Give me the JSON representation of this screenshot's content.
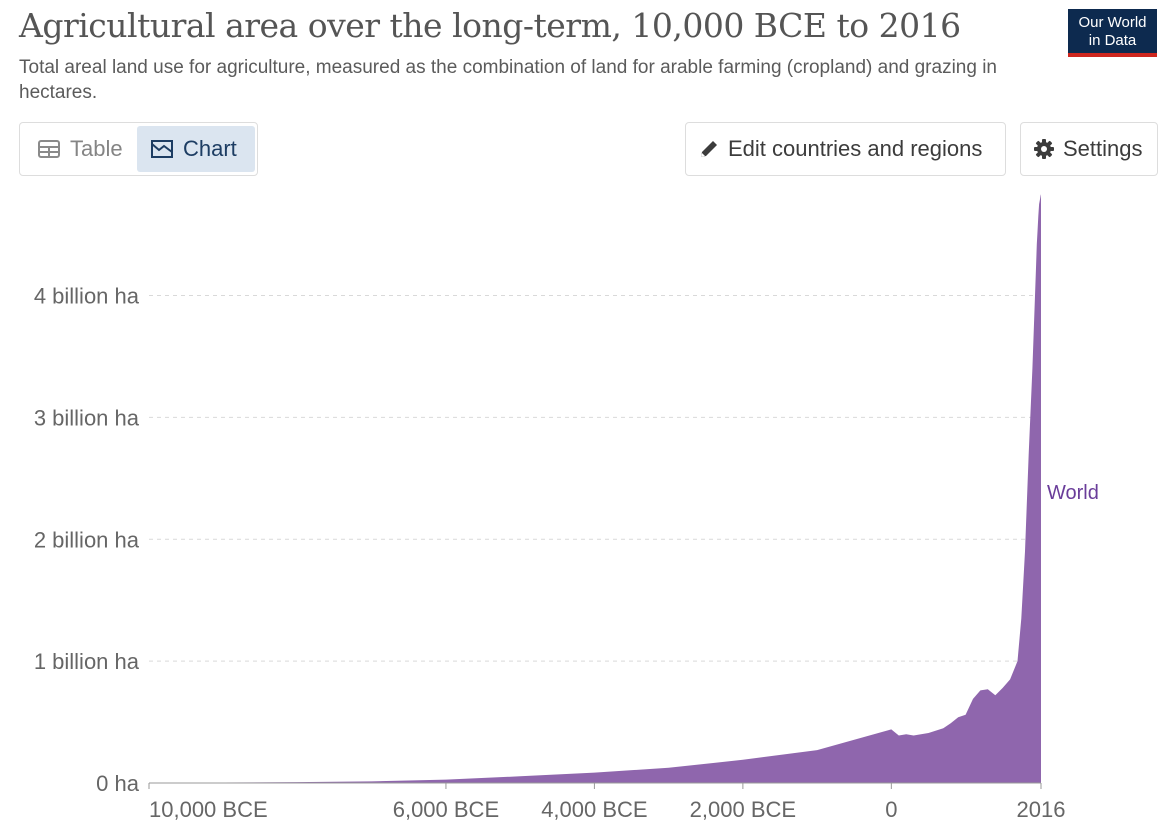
{
  "header": {
    "title": "Agricultural area over the long-term, 10,000 BCE to 2016",
    "subtitle": "Total areal land use for agriculture, measured as the combination of land for arable farming (cropland) and grazing in hectares.",
    "logo_line1": "Our World",
    "logo_line2": "in Data"
  },
  "controls": {
    "table_label": "Table",
    "chart_label": "Chart",
    "edit_label": "Edit countries and regions",
    "settings_label": "Settings"
  },
  "colors": {
    "series": "#8f66ad",
    "series_label": "#6a3d9a",
    "accent_red": "#ce261e",
    "logo_bg": "#0d2a4f"
  },
  "chart_data": {
    "type": "area",
    "title": "Agricultural area over the long-term, 10,000 BCE to 2016",
    "xlabel": "",
    "ylabel": "",
    "xlim": [
      -10000,
      2016
    ],
    "ylim": [
      0,
      4800000000
    ],
    "grid": true,
    "x_ticks": [
      {
        "value": -10000,
        "label": "10,000 BCE"
      },
      {
        "value": -6000,
        "label": "6,000 BCE"
      },
      {
        "value": -4000,
        "label": "4,000 BCE"
      },
      {
        "value": -2000,
        "label": "2,000 BCE"
      },
      {
        "value": 0,
        "label": "0"
      },
      {
        "value": 2016,
        "label": "2016"
      }
    ],
    "y_ticks": [
      {
        "value": 0,
        "label": "0 ha"
      },
      {
        "value": 1000000000,
        "label": "1 billion ha"
      },
      {
        "value": 2000000000,
        "label": "2 billion ha"
      },
      {
        "value": 3000000000,
        "label": "3 billion ha"
      },
      {
        "value": 4000000000,
        "label": "4 billion ha"
      }
    ],
    "series": [
      {
        "name": "World",
        "x": [
          -10000,
          -9000,
          -8000,
          -7000,
          -6000,
          -5000,
          -4000,
          -3000,
          -2000,
          -1000,
          0,
          100,
          200,
          300,
          400,
          500,
          600,
          700,
          800,
          900,
          1000,
          1100,
          1200,
          1300,
          1400,
          1500,
          1600,
          1700,
          1750,
          1800,
          1850,
          1900,
          1950,
          1960,
          1970,
          1980,
          1990,
          2000,
          2010,
          2016
        ],
        "y": [
          2000000,
          4000000,
          7000000,
          13000000,
          28000000,
          55000000,
          85000000,
          125000000,
          190000000,
          270000000,
          440000000,
          390000000,
          400000000,
          390000000,
          400000000,
          410000000,
          430000000,
          450000000,
          490000000,
          540000000,
          560000000,
          690000000,
          760000000,
          770000000,
          720000000,
          780000000,
          850000000,
          1000000000,
          1350000000,
          1900000000,
          2700000000,
          3400000000,
          4250000000,
          4420000000,
          4540000000,
          4650000000,
          4750000000,
          4780000000,
          4820000000,
          4830000000
        ]
      }
    ],
    "series_label": "World"
  }
}
